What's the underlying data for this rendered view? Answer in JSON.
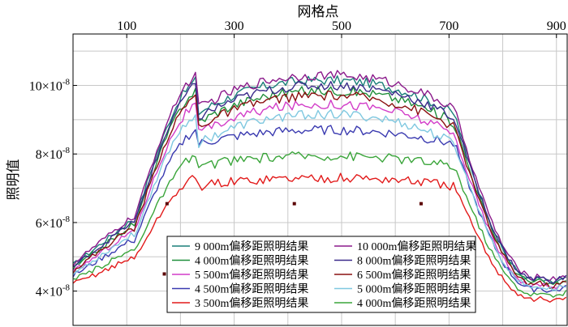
{
  "chart_data": {
    "type": "line",
    "title": "网格点",
    "xlabel": "网格点",
    "ylabel": "照明值",
    "x_ticks": [
      100,
      300,
      500,
      700,
      900
    ],
    "y_ticks": [
      {
        "value": 4,
        "mant": "4",
        "exp": "-8"
      },
      {
        "value": 6,
        "mant": "6",
        "exp": "-8"
      },
      {
        "value": 8,
        "mant": "8",
        "exp": "-8"
      },
      {
        "value": 10,
        "mant": "10",
        "exp": "-8"
      }
    ],
    "xlim": [
      0,
      920
    ],
    "ylim": [
      3.0,
      11.5
    ],
    "y_unit": "×10^-8",
    "grid": true,
    "legend_position": "bottom-center",
    "series": [
      {
        "name": "9 000m偏移距照明结果",
        "color": "#1a7f78",
        "plateau": 10.15,
        "edge": 4.75,
        "tail": 4.3
      },
      {
        "name": "10 000m偏移距照明结果",
        "color": "#8b1a8b",
        "plateau": 10.3,
        "edge": 4.8,
        "tail": 4.4
      },
      {
        "name": "4 000m偏移距照明结果",
        "color": "#1f8f3a",
        "plateau": 9.85,
        "edge": 4.65,
        "tail": 4.25
      },
      {
        "name": "8 000m偏移距照明结果",
        "color": "#3a2a8a",
        "plateau": 10.0,
        "edge": 4.7,
        "tail": 4.35
      },
      {
        "name": "5 500m偏移距照明结果",
        "color": "#d23cc8",
        "plateau": 9.45,
        "edge": 4.55,
        "tail": 4.15
      },
      {
        "name": "6 500m偏移距照明结果",
        "color": "#8a1010",
        "plateau": 9.7,
        "edge": 4.6,
        "tail": 4.2
      },
      {
        "name": "4 500m偏移距照明结果",
        "color": "#3a3ab0",
        "plateau": 8.7,
        "edge": 4.45,
        "tail": 4.05
      },
      {
        "name": "5 000m偏移距照明结果",
        "color": "#7fc8e0",
        "plateau": 9.15,
        "edge": 4.5,
        "tail": 4.1
      },
      {
        "name": "3 500m偏移距照明结果",
        "color": "#e21a1a",
        "plateau": 7.3,
        "edge": 4.2,
        "tail": 3.75
      },
      {
        "name": "4 000m偏移距照明结果",
        "color": "#3aa53a",
        "plateau": 7.95,
        "edge": 4.3,
        "tail": 3.9
      }
    ],
    "markers": [
      {
        "x": 175,
        "y": 6.55
      },
      {
        "x": 412,
        "y": 6.55
      },
      {
        "x": 648,
        "y": 6.55
      },
      {
        "x": 170,
        "y": 4.5
      }
    ]
  }
}
